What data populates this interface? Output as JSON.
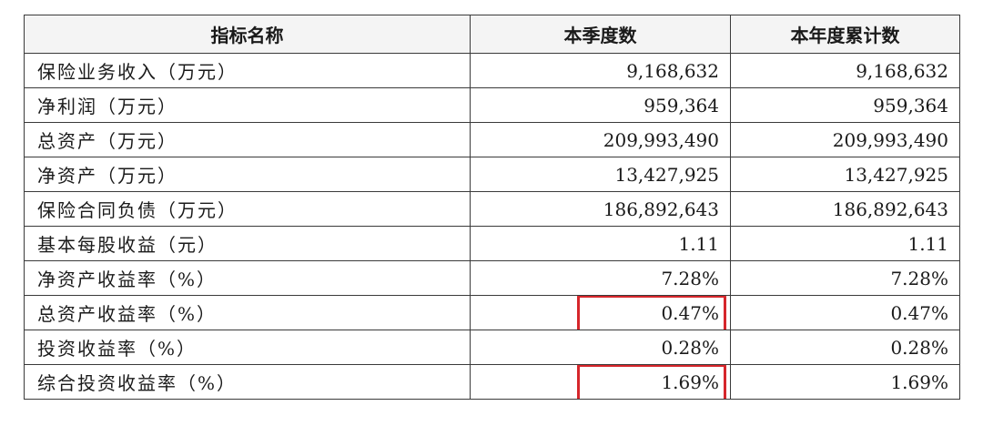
{
  "table": {
    "headers": [
      "指标名称",
      "本季度数",
      "本年度累计数"
    ],
    "rows": [
      {
        "name": "保险业务收入（万元）",
        "quarter": "9,168,632",
        "ytd": "9,168,632",
        "highlight": false
      },
      {
        "name": "净利润（万元）",
        "quarter": "959,364",
        "ytd": "959,364",
        "highlight": false
      },
      {
        "name": "总资产（万元）",
        "quarter": "209,993,490",
        "ytd": "209,993,490",
        "highlight": false
      },
      {
        "name": "净资产（万元）",
        "quarter": "13,427,925",
        "ytd": "13,427,925",
        "highlight": false
      },
      {
        "name": "保险合同负债（万元）",
        "quarter": "186,892,643",
        "ytd": "186,892,643",
        "highlight": false
      },
      {
        "name": "基本每股收益（元）",
        "quarter": "1.11",
        "ytd": "1.11",
        "highlight": false
      },
      {
        "name": "净资产收益率（%）",
        "quarter": "7.28%",
        "ytd": "7.28%",
        "highlight": false
      },
      {
        "name": "总资产收益率（%）",
        "quarter": "0.47%",
        "ytd": "0.47%",
        "highlight": true
      },
      {
        "name": "投资收益率（%）",
        "quarter": "0.28%",
        "ytd": "0.28%",
        "highlight": false
      },
      {
        "name": "综合投资收益率（%）",
        "quarter": "1.69%",
        "ytd": "1.69%",
        "highlight": true
      }
    ],
    "highlight_color": "#d6262b"
  }
}
